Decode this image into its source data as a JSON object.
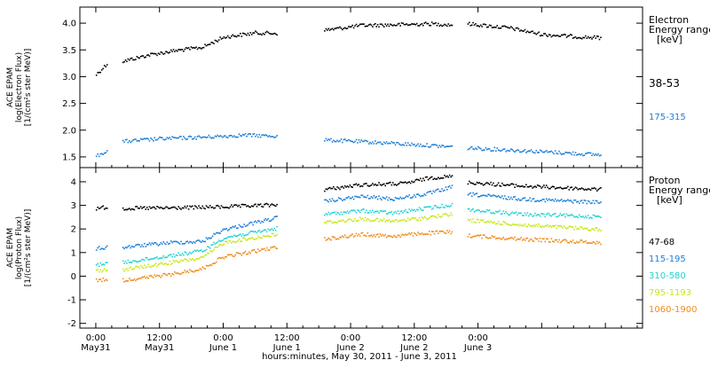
{
  "chart_data": [
    {
      "type": "scatter",
      "panel": "electron",
      "ylabel_lines": [
        "ACE EPAM",
        "log(Electron Flux)",
        "[1/(cm²s ster MeV)]"
      ],
      "ylim": [
        1.3,
        4.3
      ],
      "yticks": [
        1.5,
        2.0,
        2.5,
        3.0,
        3.5,
        4.0
      ],
      "ytick_labels": [
        "1.5",
        "2.0",
        "2.5",
        "3.0",
        "3.5",
        "4.0"
      ],
      "legend_title_lines": [
        "Electron",
        "Energy range",
        "[keV]"
      ],
      "series": [
        {
          "name": "38-53",
          "color": "#000000",
          "segments": [
            [
              [
                0,
                3.05
              ],
              [
                1,
                3.15
              ],
              [
                2,
                3.25
              ]
            ],
            [
              [
                5,
                3.3
              ],
              [
                10,
                3.42
              ],
              [
                15,
                3.5
              ],
              [
                20,
                3.56
              ],
              [
                24,
                3.75
              ],
              [
                30,
                3.83
              ],
              [
                34,
                3.82
              ]
            ],
            [
              [
                43,
                3.88
              ],
              [
                50,
                3.97
              ],
              [
                56,
                3.98
              ],
              [
                63,
                4.0
              ],
              [
                67,
                3.98
              ]
            ],
            [
              [
                70,
                4.0
              ],
              [
                78,
                3.92
              ],
              [
                84,
                3.8
              ],
              [
                92,
                3.75
              ],
              [
                95,
                3.74
              ]
            ]
          ]
        },
        {
          "name": "175-315",
          "color": "#1e7fd6",
          "segments": [
            [
              [
                0,
                1.52
              ],
              [
                1,
                1.58
              ],
              [
                2,
                1.62
              ]
            ],
            [
              [
                5,
                1.8
              ],
              [
                12,
                1.85
              ],
              [
                20,
                1.88
              ],
              [
                28,
                1.92
              ],
              [
                34,
                1.9
              ]
            ],
            [
              [
                43,
                1.83
              ],
              [
                55,
                1.77
              ],
              [
                67,
                1.7
              ]
            ],
            [
              [
                70,
                1.68
              ],
              [
                82,
                1.62
              ],
              [
                95,
                1.55
              ]
            ]
          ]
        }
      ]
    },
    {
      "type": "scatter",
      "panel": "proton",
      "ylabel_lines": [
        "ACE EPAM",
        "log(Proton Flux)",
        "[1/(cm²s ster MeV)]"
      ],
      "ylim": [
        -2.2,
        4.6
      ],
      "yticks": [
        -2,
        -1,
        0,
        1,
        2,
        3,
        4
      ],
      "ytick_labels": [
        "-2",
        "-1",
        "0",
        "1",
        "2",
        "3",
        "4"
      ],
      "legend_title_lines": [
        "Proton",
        "Energy range",
        "[keV]"
      ],
      "series": [
        {
          "name": "47-68",
          "color": "#000000",
          "segments": [
            [
              [
                0,
                2.9
              ],
              [
                2,
                2.95
              ]
            ],
            [
              [
                5,
                2.9
              ],
              [
                15,
                2.92
              ],
              [
                25,
                2.97
              ],
              [
                34,
                3.05
              ]
            ],
            [
              [
                43,
                3.7
              ],
              [
                50,
                3.9
              ],
              [
                58,
                3.95
              ],
              [
                63,
                4.2
              ],
              [
                67,
                4.25
              ]
            ],
            [
              [
                70,
                4.0
              ],
              [
                80,
                3.85
              ],
              [
                95,
                3.7
              ]
            ]
          ]
        },
        {
          "name": "115-195",
          "color": "#1e7fd6",
          "segments": [
            [
              [
                0,
                1.2
              ],
              [
                2,
                1.25
              ]
            ],
            [
              [
                5,
                1.25
              ],
              [
                14,
                1.45
              ],
              [
                20,
                1.5
              ],
              [
                24,
                2.0
              ],
              [
                34,
                2.5
              ]
            ],
            [
              [
                43,
                3.2
              ],
              [
                50,
                3.4
              ],
              [
                56,
                3.3
              ],
              [
                62,
                3.5
              ],
              [
                67,
                3.8
              ]
            ],
            [
              [
                70,
                3.5
              ],
              [
                80,
                3.3
              ],
              [
                95,
                3.15
              ]
            ]
          ]
        },
        {
          "name": "310-580",
          "color": "#22d3d3",
          "segments": [
            [
              [
                0,
                0.5
              ],
              [
                2,
                0.6
              ]
            ],
            [
              [
                5,
                0.6
              ],
              [
                14,
                0.9
              ],
              [
                20,
                1.1
              ],
              [
                24,
                1.65
              ],
              [
                34,
                2.05
              ]
            ],
            [
              [
                43,
                2.65
              ],
              [
                50,
                2.8
              ],
              [
                56,
                2.7
              ],
              [
                62,
                2.9
              ],
              [
                67,
                3.05
              ]
            ],
            [
              [
                70,
                2.85
              ],
              [
                80,
                2.65
              ],
              [
                95,
                2.55
              ]
            ]
          ]
        },
        {
          "name": "795-1193",
          "color": "#c8e619",
          "segments": [
            [
              [
                0,
                0.25
              ],
              [
                2,
                0.3
              ]
            ],
            [
              [
                5,
                0.3
              ],
              [
                14,
                0.6
              ],
              [
                20,
                0.8
              ],
              [
                24,
                1.45
              ],
              [
                34,
                1.8
              ]
            ],
            [
              [
                43,
                2.3
              ],
              [
                50,
                2.45
              ],
              [
                56,
                2.35
              ],
              [
                62,
                2.5
              ],
              [
                67,
                2.65
              ]
            ],
            [
              [
                70,
                2.4
              ],
              [
                80,
                2.2
              ],
              [
                95,
                2.0
              ]
            ]
          ]
        },
        {
          "name": "1060-1900",
          "color": "#f08c1a",
          "segments": [
            [
              [
                0,
                -0.15
              ],
              [
                2,
                -0.1
              ]
            ],
            [
              [
                5,
                -0.15
              ],
              [
                14,
                0.1
              ],
              [
                20,
                0.35
              ],
              [
                24,
                0.85
              ],
              [
                34,
                1.25
              ]
            ],
            [
              [
                43,
                1.6
              ],
              [
                50,
                1.8
              ],
              [
                56,
                1.72
              ],
              [
                62,
                1.85
              ],
              [
                67,
                1.9
              ]
            ],
            [
              [
                70,
                1.75
              ],
              [
                80,
                1.6
              ],
              [
                95,
                1.45
              ]
            ]
          ]
        }
      ]
    }
  ],
  "xaxis": {
    "range_hours": [
      -3,
      103
    ],
    "ticks": [
      0,
      12,
      24,
      36,
      48,
      60,
      72,
      84,
      96
    ],
    "tick_labels": [
      [
        "0:00",
        "May31"
      ],
      [
        "12:00",
        "May31"
      ],
      [
        "0:00",
        "June 1"
      ],
      [
        "12:00",
        "June 1"
      ],
      [
        "0:00",
        "June 2"
      ],
      [
        "12:00",
        "June 2"
      ],
      [
        "0:00",
        "June 3"
      ]
    ],
    "labeled_ticks": [
      0,
      12,
      24,
      36,
      48,
      60,
      72
    ],
    "xlabel": "hours:minutes, May 30, 2011 - June  3, 2011"
  }
}
